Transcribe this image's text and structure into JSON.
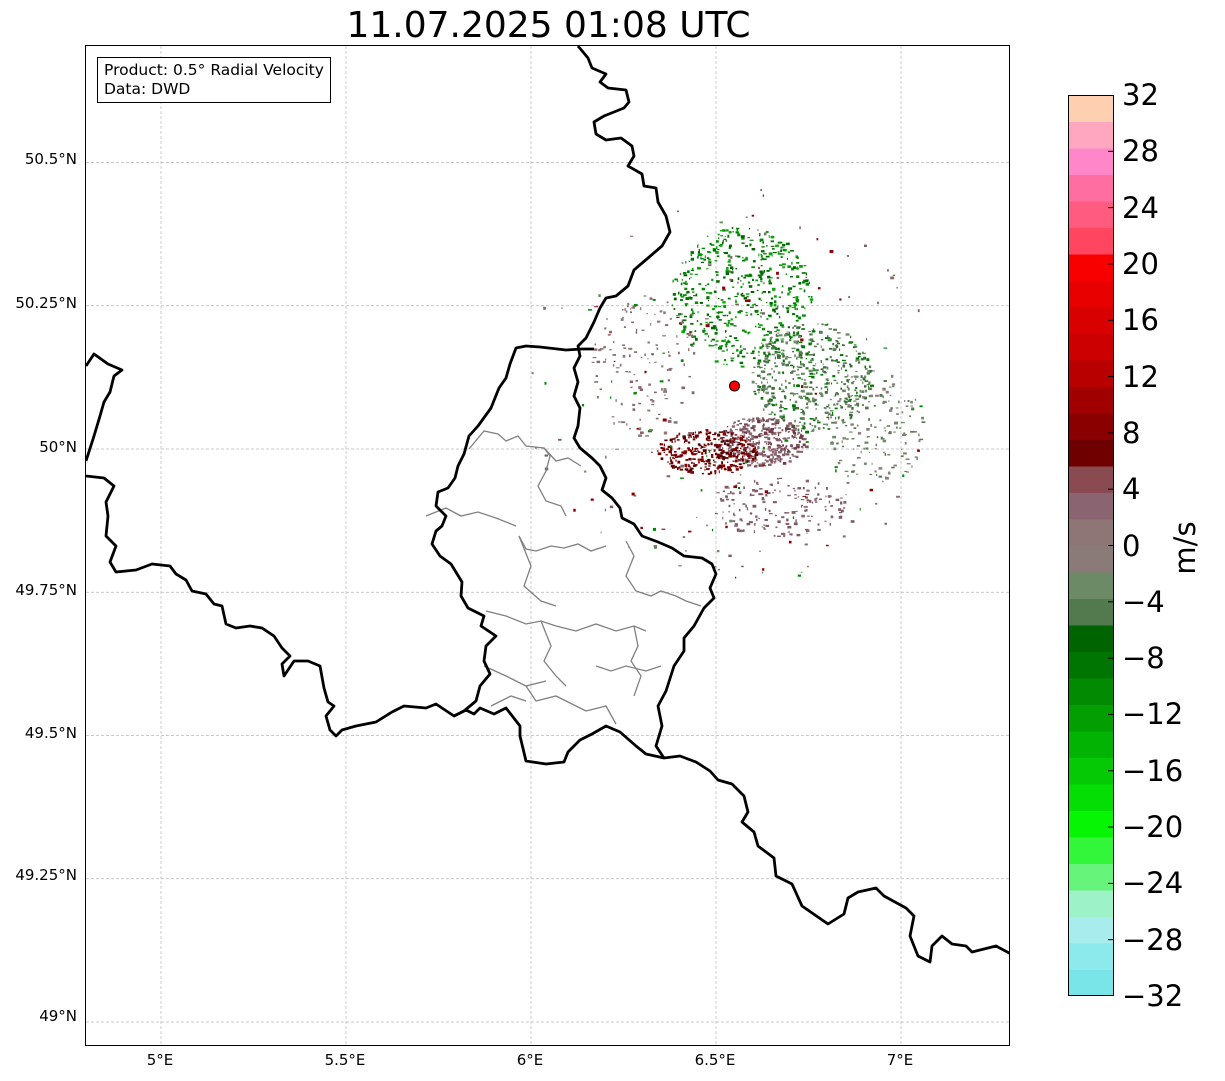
{
  "title": "11.07.2025 01:08 UTC",
  "info": {
    "product": "Product: 0.5° Radial Velocity",
    "data": "Data: DWD"
  },
  "map": {
    "lon_ticks": [
      "5°E",
      "5.5°E",
      "6°E",
      "6.5°E",
      "7°E"
    ],
    "lat_ticks": [
      "50.5°N",
      "50.25°N",
      "50°N",
      "49.75°N",
      "49.5°N",
      "49.25°N",
      "49°N"
    ],
    "lon_values": [
      5.0,
      5.5,
      6.0,
      6.5,
      7.0
    ],
    "lat_values": [
      50.5,
      50.25,
      50.0,
      49.75,
      49.5,
      49.25,
      49.0
    ],
    "gridlines": true,
    "radar_site": {
      "lon": 6.55,
      "lat": 50.11,
      "color": "#ff0000"
    },
    "national_border_color": "#000000",
    "district_border_color": "#808080"
  },
  "colorbar": {
    "label": "m/s",
    "min": -32,
    "max": 32,
    "tick_labels": [
      "32",
      "28",
      "24",
      "20",
      "16",
      "12",
      "8",
      "4",
      "0",
      "−4",
      "−8",
      "−12",
      "−16",
      "−20",
      "−24",
      "−28",
      "−32"
    ],
    "colors_bottom_to_top": [
      "#7ae5e8",
      "#8ce9ec",
      "#a8ecee",
      "#9ef2c8",
      "#66f57a",
      "#33f53a",
      "#05f505",
      "#04de04",
      "#04c904",
      "#03b303",
      "#029e02",
      "#028a02",
      "#017501",
      "#006400",
      "#527a4e",
      "#6c8a66",
      "#8a7a78",
      "#8e7676",
      "#8a6470",
      "#8a4a52",
      "#6e0000",
      "#8a0000",
      "#a00000",
      "#b80000",
      "#cc0000",
      "#d80000",
      "#e80000",
      "#f80000",
      "#ff4560",
      "#ff5a80",
      "#ff6ea0",
      "#ff86c8",
      "#ffa6c0",
      "#ffcfb2"
    ]
  }
}
